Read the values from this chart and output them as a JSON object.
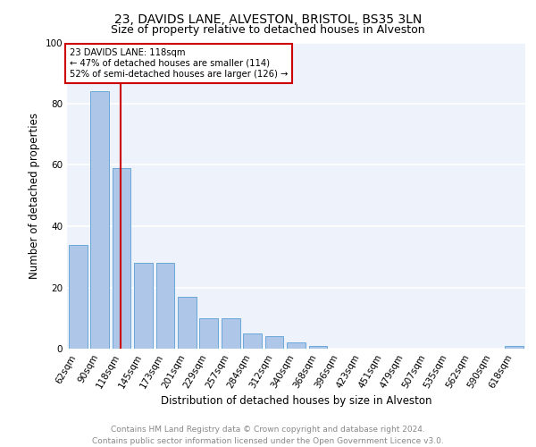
{
  "title1": "23, DAVIDS LANE, ALVESTON, BRISTOL, BS35 3LN",
  "title2": "Size of property relative to detached houses in Alveston",
  "xlabel": "Distribution of detached houses by size in Alveston",
  "ylabel": "Number of detached properties",
  "footer": "Contains HM Land Registry data © Crown copyright and database right 2024.\nContains public sector information licensed under the Open Government Licence v3.0.",
  "categories": [
    "62sqm",
    "90sqm",
    "118sqm",
    "145sqm",
    "173sqm",
    "201sqm",
    "229sqm",
    "257sqm",
    "284sqm",
    "312sqm",
    "340sqm",
    "368sqm",
    "396sqm",
    "423sqm",
    "451sqm",
    "479sqm",
    "507sqm",
    "535sqm",
    "562sqm",
    "590sqm",
    "618sqm"
  ],
  "values": [
    34,
    84,
    59,
    28,
    28,
    17,
    10,
    10,
    5,
    4,
    2,
    1,
    0,
    0,
    0,
    0,
    0,
    0,
    0,
    0,
    1
  ],
  "bar_color": "#aec6e8",
  "bar_edge_color": "#5a9fd4",
  "highlight_index": 2,
  "highlight_line_color": "#cc0000",
  "annotation_text": "23 DAVIDS LANE: 118sqm\n← 47% of detached houses are smaller (114)\n52% of semi-detached houses are larger (126) →",
  "annotation_box_color": "#ffffff",
  "annotation_box_edge_color": "#cc0000",
  "ylim": [
    0,
    100
  ],
  "background_color": "#eef2fa",
  "grid_color": "#ffffff",
  "title1_fontsize": 10,
  "title2_fontsize": 9,
  "xlabel_fontsize": 8.5,
  "ylabel_fontsize": 8.5,
  "tick_fontsize": 7.5,
  "footer_fontsize": 6.5
}
